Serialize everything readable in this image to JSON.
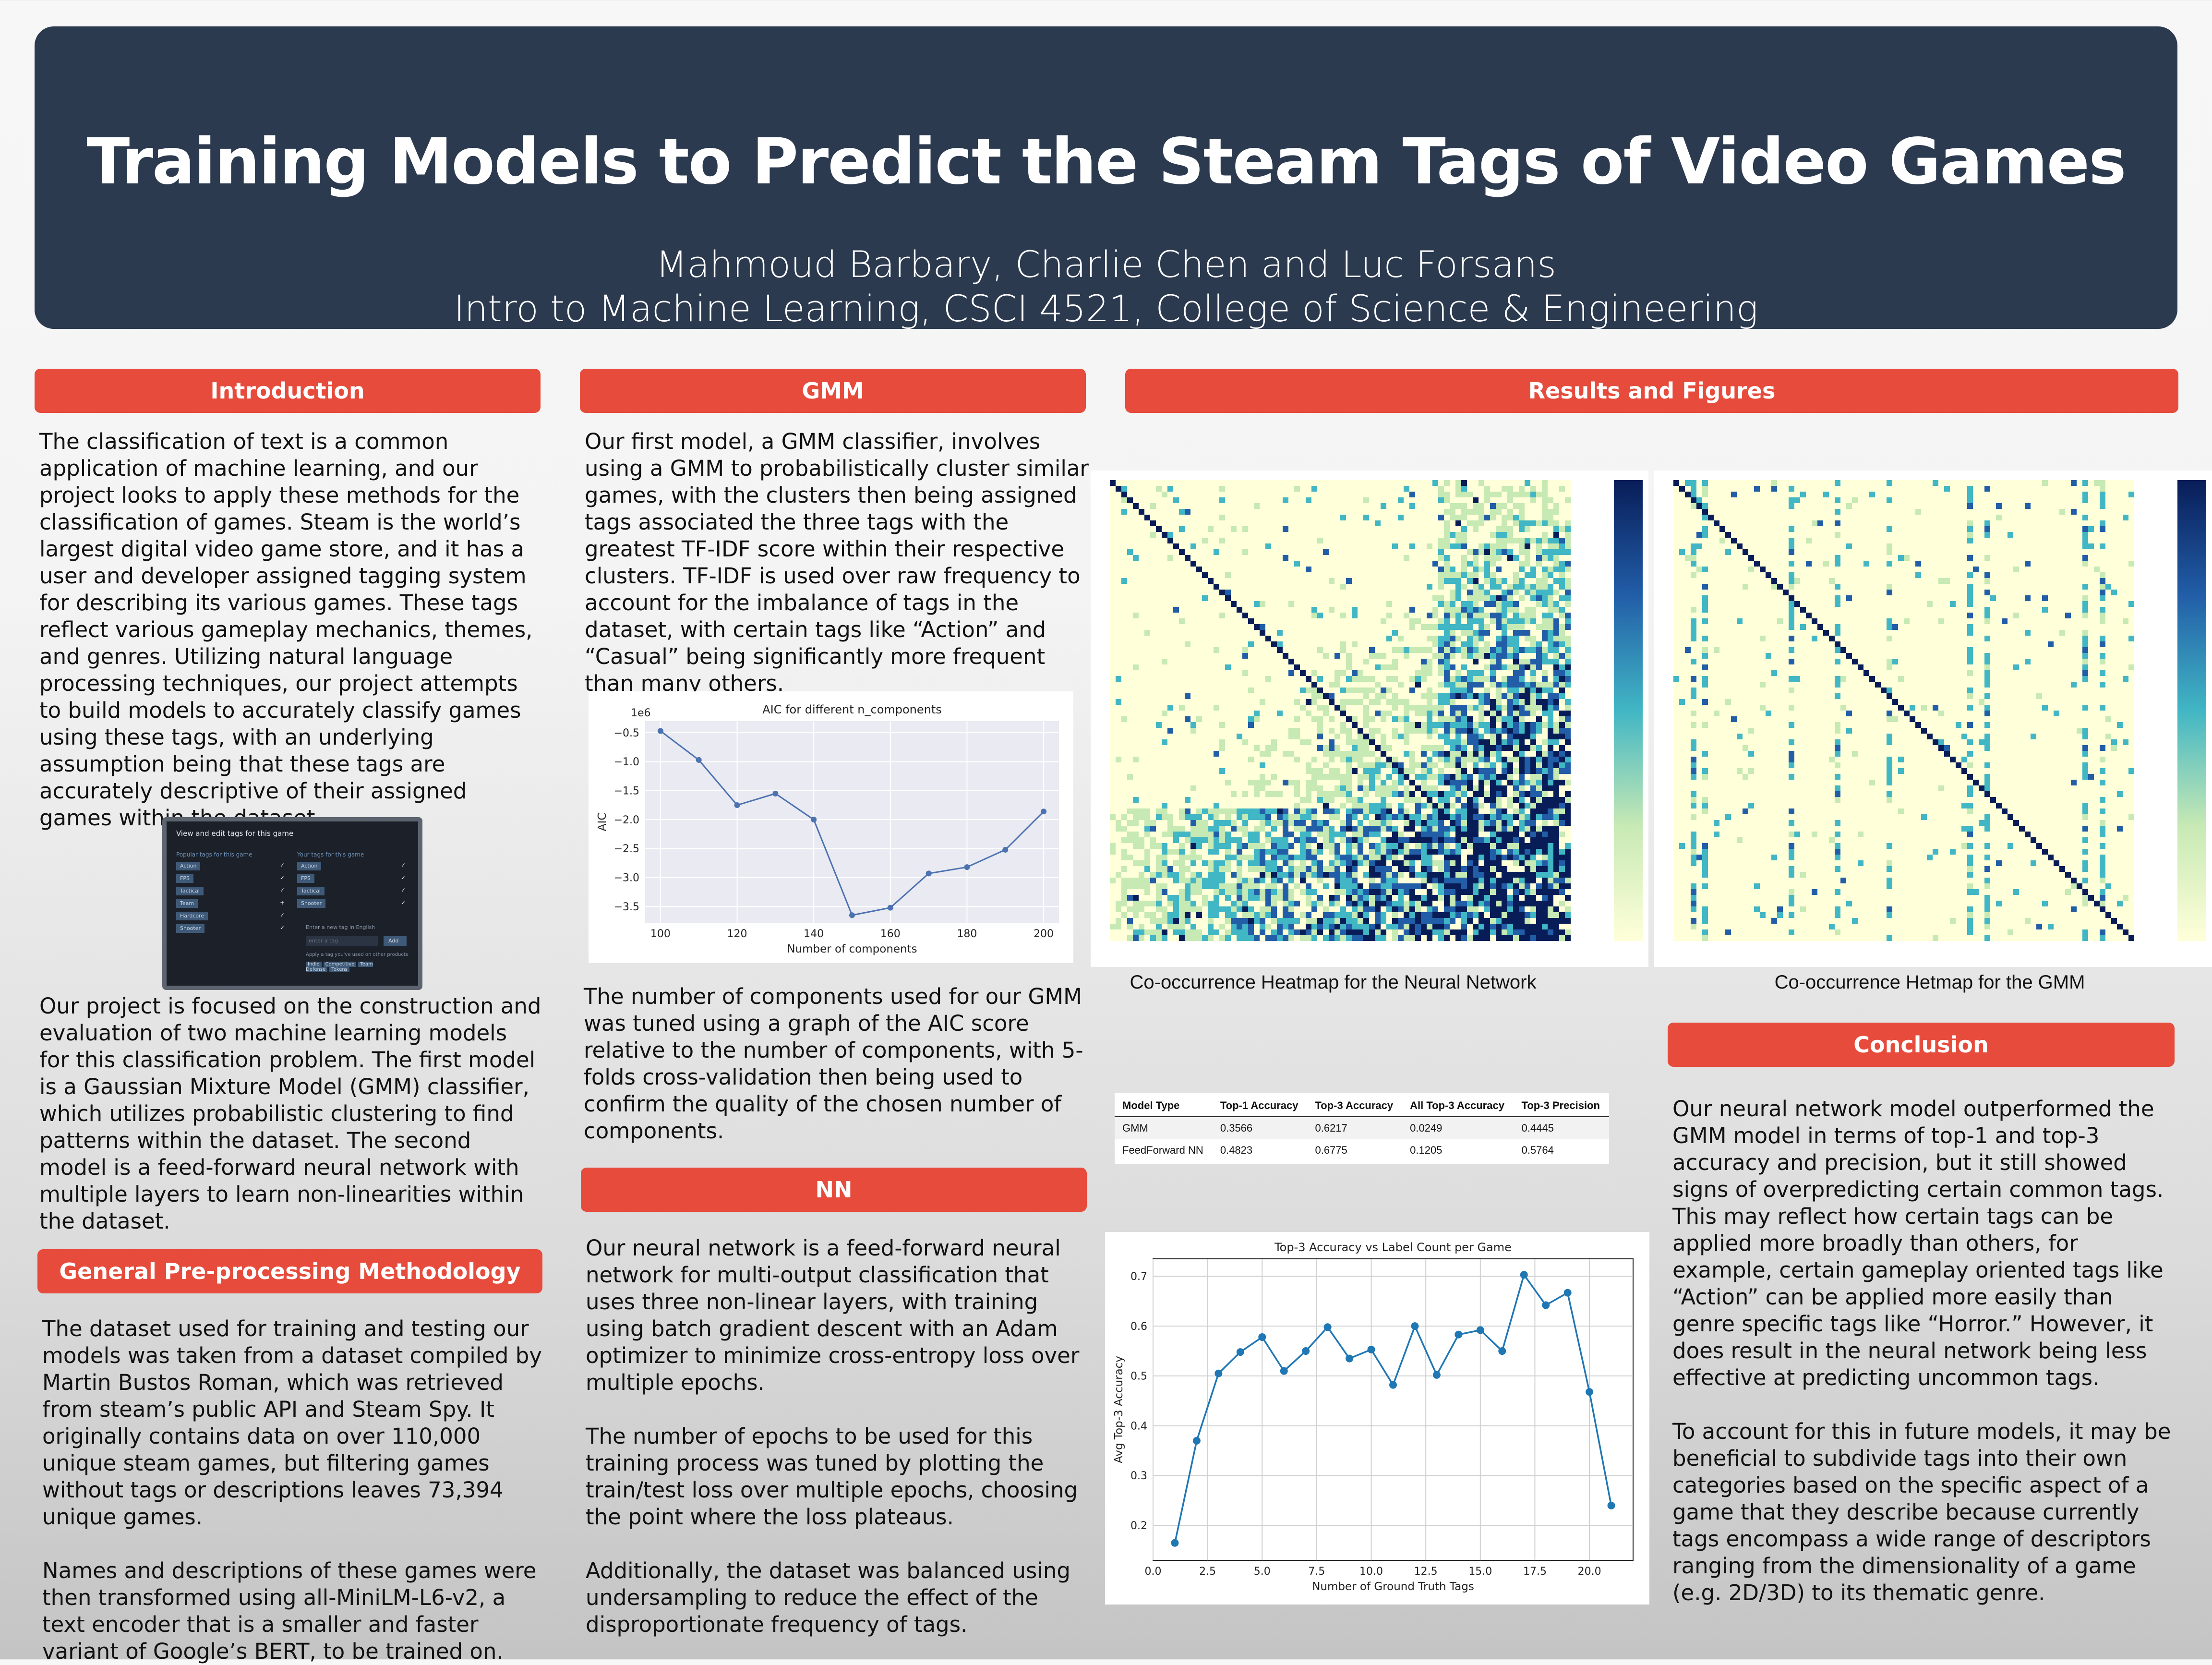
{
  "header": {
    "title": "Training Models to Predict the Steam Tags of Video Games",
    "authors": "Mahmoud Barbary, Charlie Chen and Luc Forsans",
    "affiliation": "Intro to Machine Learning, CSCI 4521, College of Science & Engineering"
  },
  "colors": {
    "banner": "#2c3a50",
    "section_header": "#e64b3c",
    "plot_line": "#4c72b0",
    "plot_line2": "#1f77b4"
  },
  "intro": {
    "heading": "Introduction",
    "p1": "The classification of text is a common application of machine learning, and our project looks to apply these methods for the classification of games. Steam is the world’s largest digital video game store, and it has a user and developer assigned tagging system for describing its various games. These tags reflect various gameplay mechanics, themes, and genres. Utilizing natural language processing techniques, our project attempts to build models to accurately classify games using these tags, with an underlying assumption being that these tags are accurately descriptive of their assigned games within the dataset.",
    "p2": "Our project is focused on the construction and evaluation of two machine learning models for this classification problem. The first model is a Gaussian Mixture Model (GMM) classifier, which utilizes probabilistic clustering to find patterns within the dataset. The second model is a feed-forward neural network with multiple layers to learn non-linearities within the dataset."
  },
  "screenshot": {
    "title": "View and edit tags for this game",
    "left_header": "Popular tags for this game",
    "right_header": "Your tags for this game",
    "left_tags": [
      "Action",
      "FPS",
      "Tactical",
      "Team",
      "Hardcore",
      "Shooter"
    ],
    "right_tags": [
      "Action",
      "FPS",
      "Tactical",
      "Shooter"
    ],
    "input_label": "Enter a new tag in English",
    "input_placeholder": "enter a tag",
    "add_label": "Add",
    "apply_label": "Apply a tag you've used on other products",
    "chips": [
      "Indie",
      "Competitive",
      "Team Defense",
      "Tokens"
    ]
  },
  "preprocessing": {
    "heading": "General Pre-processing Methodology",
    "p1": "The dataset used for training and testing our models was taken from a dataset compiled by Martin Bustos Roman, which was retrieved from steam’s public API and Steam Spy. It originally contains data on over 110,000 unique steam games, but filtering games without tags or descriptions leaves 73,394 unique games.",
    "p2": "Names and descriptions of these games were then transformed using all-MiniLM-L6-v2, a text encoder that is a smaller and faster variant of Google’s BERT, to be trained on."
  },
  "gmm": {
    "heading": "GMM",
    "p1": "Our first model, a GMM classifier, involves using a GMM to probabilistically cluster similar games, with the clusters then being assigned tags associated the three tags with the greatest TF-IDF score within their respective clusters. TF-IDF is used over raw frequency to account for the imbalance of tags in the dataset, with certain tags like “Action” and “Casual” being significantly more frequent than many others.",
    "p2": "The number of components used for our GMM was tuned using a graph of the AIC score relative to the number of components, with 5-folds cross-validation then being used to confirm the quality of the chosen number of components."
  },
  "nn": {
    "heading": "NN",
    "p1": "Our neural network is a feed-forward neural network for multi-output classification that uses three non-linear layers, with training using batch gradient descent with an Adam optimizer to minimize cross-entropy loss over multiple epochs.",
    "p2": "The number of epochs to be used  for this training process was tuned by plotting the train/test loss over multiple epochs, choosing the point where the loss plateaus.",
    "p3": "Additionally, the dataset was balanced using undersampling to reduce the effect of the disproportionate frequency of tags."
  },
  "results": {
    "heading": "Results and Figures",
    "heatmap_nn_caption": "Co-occurrence Heatmap for the Neural Network",
    "heatmap_gmm_caption": "Co-occurrence Hetmap for the GMM"
  },
  "conclusion": {
    "heading": "Conclusion",
    "p1": "Our neural network model outperformed the GMM model in terms of top-1 and top-3 accuracy and precision, but it still showed signs of overpredicting certain common tags. This may reflect how certain tags can be applied more broadly than others, for example, certain gameplay oriented tags like “Action” can be applied more easily than genre specific tags like “Horror.” However, it does result in the neural network being less effective at predicting uncommon tags.",
    "p2": "To account for this in future models, it may be beneficial to subdivide tags into their own categories based on the specific aspect of a game that they describe because currently tags encompass a wide range of descriptors ranging from the dimensionality of a game (e.g. 2D/3D) to its thematic genre."
  },
  "chart_data": [
    {
      "type": "line",
      "title": "AIC for different n_components",
      "xlabel": "Number of components",
      "ylabel": "AIC",
      "y_multiplier": "1e6",
      "x": [
        100,
        110,
        120,
        130,
        140,
        150,
        160,
        170,
        180,
        190,
        200
      ],
      "y": [
        -0.47,
        -0.97,
        -1.75,
        -1.55,
        -2.0,
        -3.65,
        -3.52,
        -2.93,
        -2.82,
        -2.52,
        -1.86
      ],
      "xticks": [
        100,
        120,
        140,
        160,
        180,
        200
      ],
      "yticks": [
        -0.5,
        -1.0,
        -1.5,
        -2.0,
        -2.5,
        -3.0,
        -3.5
      ],
      "xlim": [
        96,
        204
      ],
      "ylim": [
        -3.78,
        -0.3
      ],
      "grid": true
    },
    {
      "type": "table",
      "columns": [
        "Model Type",
        "Top-1 Accuracy",
        "Top-3 Accuracy",
        "All Top-3 Accuracy",
        "Top-3 Precision"
      ],
      "rows": [
        [
          "GMM",
          "0.3566",
          "0.6217",
          "0.0249",
          "0.4445"
        ],
        [
          "FeedForward NN",
          "0.4823",
          "0.6775",
          "0.1205",
          "0.5764"
        ]
      ]
    },
    {
      "type": "line",
      "title": "Top-3 Accuracy vs Label Count per Game",
      "xlabel": "Number of Ground Truth Tags",
      "ylabel": "Avg Top-3 Accuracy",
      "x": [
        1,
        2,
        3,
        4,
        5,
        6,
        7,
        8,
        9,
        10,
        11,
        12,
        13,
        14,
        15,
        16,
        17,
        18,
        19,
        20,
        21
      ],
      "y": [
        0.165,
        0.37,
        0.505,
        0.548,
        0.578,
        0.51,
        0.55,
        0.598,
        0.535,
        0.553,
        0.482,
        0.6,
        0.502,
        0.583,
        0.592,
        0.55,
        0.703,
        0.642,
        0.667,
        0.468,
        0.24
      ],
      "xticks": [
        0.0,
        2.5,
        5.0,
        7.5,
        10.0,
        12.5,
        15.0,
        17.5,
        20.0
      ],
      "yticks": [
        0.2,
        0.3,
        0.4,
        0.5,
        0.6,
        0.7
      ],
      "xlim": [
        0,
        22
      ],
      "ylim": [
        0.13,
        0.735
      ],
      "grid": true
    },
    {
      "type": "heatmap",
      "description_tag": "nn-cooccurrence",
      "colormap": [
        "#ffffd9",
        "#c7e9b4",
        "#41b6c4",
        "#225ea8",
        "#081d58"
      ]
    },
    {
      "type": "heatmap",
      "description_tag": "gmm-cooccurrence",
      "colormap": [
        "#ffffd9",
        "#c7e9b4",
        "#41b6c4",
        "#225ea8",
        "#081d58"
      ]
    }
  ]
}
